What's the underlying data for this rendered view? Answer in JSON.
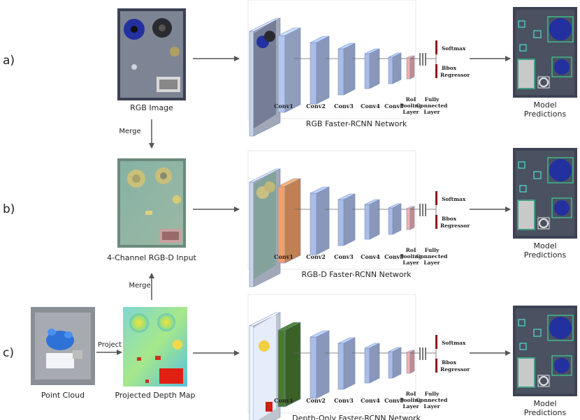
{
  "rows": [
    {
      "label": "a)",
      "input_caption": "RGB Image",
      "merge_label": "Merge",
      "network_caption": "RGB Faster-RCNN Network",
      "output_caption": [
        "Model",
        "Predictions"
      ],
      "first_layer_color": "#b4c6ee"
    },
    {
      "label": "b)",
      "input_caption": "4-Channel RGB-D Input",
      "network_caption": "RGB-D Faster-RCNN Network",
      "output_caption": [
        "Model",
        "Predictions"
      ],
      "first_layer_color": "#f0a068"
    },
    {
      "label": "c)",
      "point_cloud_caption": "Point Cloud",
      "project_label": "Project",
      "input_caption": "Projected Depth Map",
      "merge_label": "Merge",
      "network_caption": "Depth-Only Faster-RCNN Network",
      "output_caption": [
        "Model",
        "Predictions"
      ],
      "first_layer_color": "#4a7a30"
    }
  ],
  "layers": {
    "conv": [
      "Conv1",
      "Conv2",
      "Conv3",
      "Conv4",
      "Conv5"
    ],
    "roi": [
      "RoI",
      "Pooling",
      "Layer"
    ],
    "fc": [
      "Fully",
      "Connected",
      "Layer"
    ],
    "softmax": "Softmax",
    "bbox": [
      "Bbox",
      "Regressor"
    ]
  },
  "colors": {
    "conv_layer": "#aabde8",
    "roi_layer": "#f2b0b0",
    "head_marker": "#8b1a1a",
    "arrow": "#555555"
  }
}
